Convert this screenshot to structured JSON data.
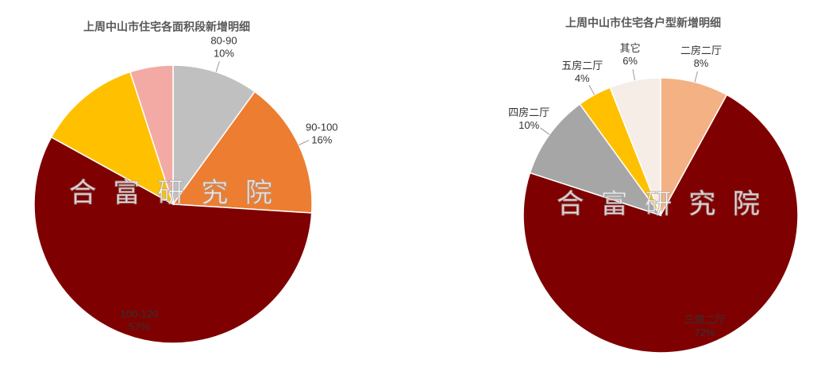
{
  "watermark": "合 富 研 究 院",
  "chart_data": [
    {
      "type": "pie",
      "title": "上周中山市住宅各面积段新增明细",
      "categories": [
        "80-90",
        "90-100",
        "100-120",
        null,
        null
      ],
      "values": [
        10,
        16,
        57,
        12,
        5
      ],
      "value_labels": [
        "10%",
        "16%",
        "57%",
        null,
        null
      ],
      "colors": [
        "#c0c0c0",
        "#ed7d31",
        "#7f0000",
        "#ffc000",
        "#f4aaa4"
      ]
    },
    {
      "type": "pie",
      "title": "上周中山市住宅各户型新增明细",
      "categories": [
        "二房二厅",
        "三房二厅",
        "四房二厅",
        "五房二厅",
        "其它"
      ],
      "values": [
        8,
        72,
        10,
        4,
        6
      ],
      "value_labels": [
        "8%",
        "72%",
        "10%",
        "4%",
        "6%"
      ],
      "colors": [
        "#f4b183",
        "#7f0000",
        "#a6a6a6",
        "#ffc000",
        "#f5ede6"
      ]
    }
  ]
}
